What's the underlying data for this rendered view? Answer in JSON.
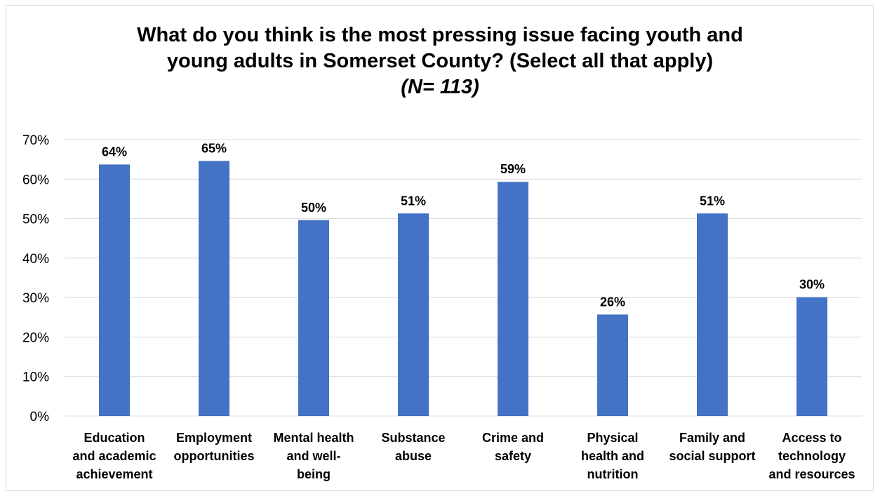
{
  "chart_data": {
    "type": "bar",
    "title_lines": [
      "What do you think is the most pressing issue facing youth and",
      "young adults in Somerset County? (Select all that apply)"
    ],
    "subtitle": "(N= 113)",
    "categories": [
      [
        "Education",
        "and academic",
        "achievement"
      ],
      [
        "Employment",
        "opportunities"
      ],
      [
        "Mental health",
        "and well-",
        "being"
      ],
      [
        "Substance",
        "abuse"
      ],
      [
        "Crime and",
        "safety"
      ],
      [
        "Physical",
        "health and",
        "nutrition"
      ],
      [
        "Family and",
        "social support"
      ],
      [
        "Access to",
        "technology",
        "and resources"
      ]
    ],
    "values": [
      64,
      65,
      50,
      51,
      59,
      26,
      51,
      30
    ],
    "bar_heights_pct": [
      63.7,
      64.6,
      49.6,
      51.3,
      59.3,
      25.7,
      51.3,
      30.1
    ],
    "data_labels": [
      "64%",
      "65%",
      "50%",
      "51%",
      "59%",
      "26%",
      "51%",
      "30%"
    ],
    "y_ticks": [
      "0%",
      "10%",
      "20%",
      "30%",
      "40%",
      "50%",
      "60%",
      "70%"
    ],
    "ylim": [
      0,
      70
    ],
    "grid": true,
    "bar_color": "#4472C4",
    "xlabel": "",
    "ylabel": ""
  }
}
